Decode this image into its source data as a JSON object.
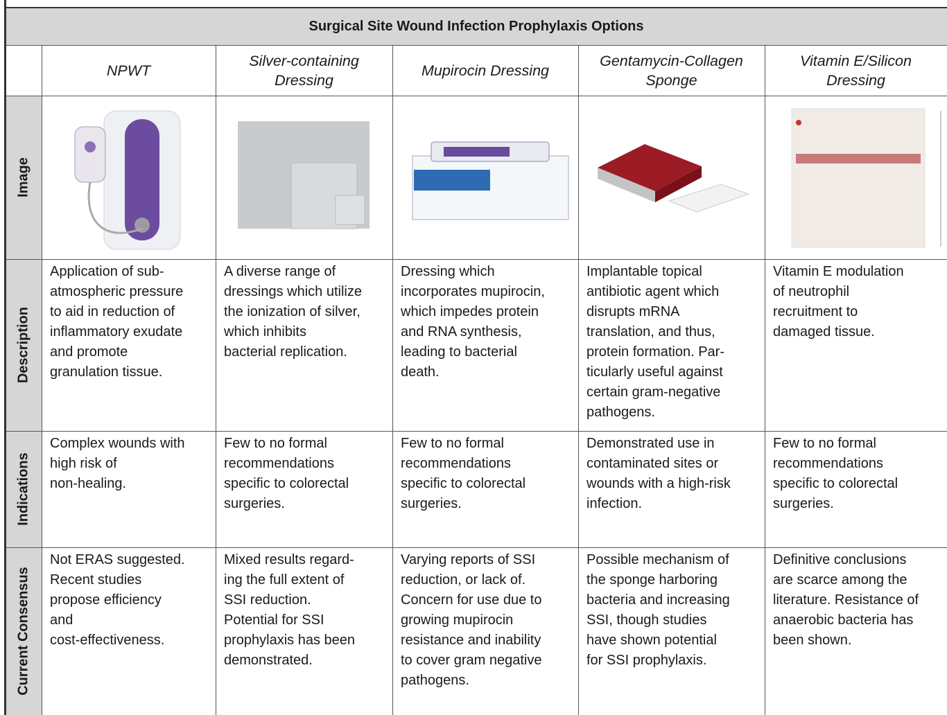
{
  "table": {
    "title": "Surgical Site Wound Infection Prophylaxis Options",
    "columns": [
      [
        "NPWT"
      ],
      [
        "Silver-containing",
        "Dressing"
      ],
      [
        "Mupirocin Dressing"
      ],
      [
        "Gentamycin-Collagen",
        "Sponge"
      ],
      [
        "Vitamin E/Silicon",
        "Dressing"
      ]
    ],
    "rows": [
      {
        "label": "Image"
      },
      {
        "label": "Description",
        "cells": [
          [
            "Application of sub-",
            "atmospheric pressure",
            "to aid in reduction of",
            "inflammatory exudate",
            "and promote",
            "granulation tissue."
          ],
          [
            "A diverse range of",
            "dressings which utilize",
            "the ionization of silver,",
            "which inhibits",
            "bacterial replication."
          ],
          [
            "Dressing which",
            "incorporates mupirocin,",
            "which impedes protein",
            "and RNA synthesis,",
            "leading to bacterial",
            "death."
          ],
          [
            "Implantable topical",
            "antibiotic agent which",
            "disrupts mRNA",
            "translation, and thus,",
            "protein formation. Par-",
            "ticularly useful against",
            "certain gram-negative",
            "pathogens."
          ],
          [
            "Vitamin E modulation",
            "of neutrophil",
            "recruitment to",
            "damaged tissue."
          ]
        ]
      },
      {
        "label": "Indications",
        "cells": [
          [
            "Complex wounds with",
            "high risk of",
            "non-healing."
          ],
          [
            "Few to no formal",
            "recommendations",
            "specific to colorectal",
            "surgeries."
          ],
          [
            "Few to no formal",
            "recommendations",
            "specific to colorectal",
            "surgeries."
          ],
          [
            "Demonstrated use in",
            "contaminated sites or",
            "wounds with a high-risk",
            "infection."
          ],
          [
            "Few to no formal",
            "recommendations",
            "specific to colorectal",
            "surgeries."
          ]
        ]
      },
      {
        "label": "Current Consensus",
        "cells": [
          [
            "Not ERAS suggested.",
            "Recent studies",
            "propose efficiency",
            "and",
            "cost-effectiveness."
          ],
          [
            "Mixed results regard-",
            "ing the full extent of",
            "SSI reduction.",
            "Potential for SSI",
            "prophylaxis has been",
            "demonstrated."
          ],
          [
            "Varying reports of SSI",
            "reduction, or lack of.",
            "Concern for use due to",
            "growing mupirocin",
            "resistance and inability",
            "to cover gram negative",
            "pathogens."
          ],
          [
            "Possible mechanism of",
            "the sponge harboring",
            "bacteria and increasing",
            "SSI, though studies",
            "have shown potential",
            "for SSI prophylaxis."
          ],
          [
            "Definitive conclusions",
            "are scarce among the",
            "literature. Resistance of",
            "anaerobic bacteria has",
            "been shown."
          ]
        ]
      }
    ]
  }
}
